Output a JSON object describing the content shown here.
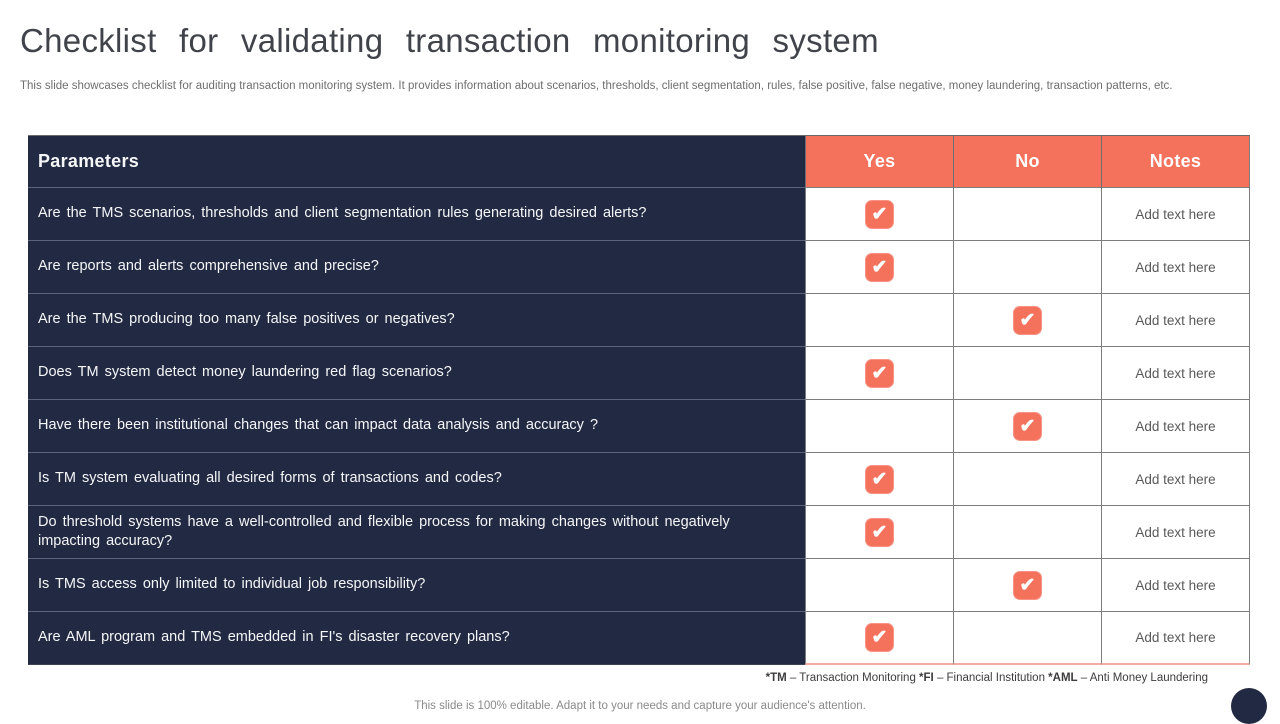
{
  "title": "Checklist for validating transaction monitoring system",
  "subtitle": "This slide showcases checklist for auditing transaction monitoring system. It provides information about scenarios, thresholds, client segmentation, rules, false positive, false negative, money laundering, transaction patterns, etc.",
  "colors": {
    "accent_coral": "#F4715C",
    "dark_navy": "#222942",
    "table_border_gray": "#7d7d7d"
  },
  "check_glyph": "✔",
  "table": {
    "headers": {
      "param": "Parameters",
      "yes": "Yes",
      "no": "No",
      "notes": "Notes"
    },
    "rows": [
      {
        "param": "Are the TMS scenarios, thresholds and client segmentation rules generating desired alerts?",
        "yes": true,
        "no": false,
        "note": "Add text here"
      },
      {
        "param": "Are reports and alerts comprehensive and precise?",
        "yes": true,
        "no": false,
        "note": "Add text here"
      },
      {
        "param": "Are the TMS producing too many false positives or negatives?",
        "yes": false,
        "no": true,
        "note": "Add text here"
      },
      {
        "param": "Does TM system detect money laundering red flag scenarios?",
        "yes": true,
        "no": false,
        "note": "Add text here"
      },
      {
        "param": "Have there been institutional changes that can impact data analysis and accuracy ?",
        "yes": false,
        "no": true,
        "note": "Add text here"
      },
      {
        "param": "Is TM system evaluating all desired forms of transactions and codes?",
        "yes": true,
        "no": false,
        "note": "Add text here"
      },
      {
        "param": "Do threshold systems have a well-controlled and flexible process for making changes without negatively impacting accuracy?",
        "yes": true,
        "no": false,
        "note": "Add text here"
      },
      {
        "param": "Is TMS access only limited to individual job responsibility?",
        "yes": false,
        "no": true,
        "note": "Add text here"
      },
      {
        "param": "Are AML program and TMS embedded in FI's disaster recovery plans?",
        "yes": true,
        "no": false,
        "note": "Add text here"
      }
    ]
  },
  "footnote": {
    "tm_abbr": "*TM",
    "tm_text": " – Transaction Monitoring ",
    "fi_abbr": "*FI",
    "fi_text": " – Financial Institution ",
    "aml_abbr": "*AML",
    "aml_text": " – Anti Money Laundering"
  },
  "slide_note": "This slide is 100% editable. Adapt it to your needs and capture your audience's attention."
}
